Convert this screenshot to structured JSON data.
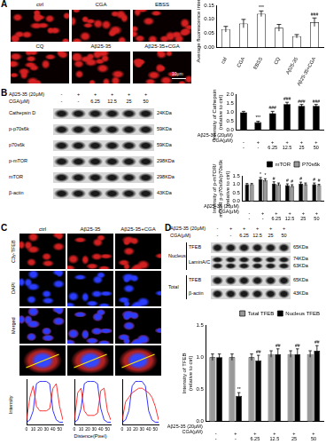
{
  "figure": {
    "A": {
      "label": "A",
      "image_labels": [
        "ctrl",
        "CGA",
        "EBSS",
        "CQ",
        "Aβ25-35",
        "Aβ25-35+CGA"
      ],
      "scale_bar": "10μm"
    },
    "B": {
      "label": "B",
      "blot": {
        "treatments": [
          {
            "label": "Aβ25-35 (20μM)",
            "values": [
              "-",
              "+",
              "+",
              "+",
              "+",
              "+"
            ]
          },
          {
            "label": "CGA(μM)",
            "values": [
              "-",
              "-",
              "6.25",
              "12.5",
              "25",
              "50"
            ]
          }
        ],
        "sections": [
          {
            "name": null,
            "bands": [
              {
                "name": "Cathepsin D",
                "sizes": [
                  "24KDa"
                ]
              },
              {
                "name": "p-p70s6k",
                "sizes": [
                  "59KDa"
                ]
              },
              {
                "name": "p70s6k",
                "sizes": [
                  "59KDa"
                ]
              },
              {
                "name": "p-mTOR",
                "sizes": [
                  "298KDa"
                ]
              },
              {
                "name": "mTOR",
                "sizes": [
                  "298KDa"
                ]
              },
              {
                "name": "β-actin",
                "sizes": [
                  "43KDa"
                ]
              }
            ]
          }
        ]
      }
    },
    "C": {
      "label": "C",
      "columns": [
        "ctrl",
        "Aβ25-35",
        "Aβ25-35+CGA"
      ],
      "rows": [
        "C3y-TFEB",
        "DAPI",
        "Merged"
      ],
      "profile_x_label": "Distence(Pixel)",
      "profile_y_label": "Intensity"
    },
    "D": {
      "label": "D",
      "blot": {
        "treatments": [
          {
            "label": "Aβ25-35 (20μM)",
            "values": [
              "-",
              "+",
              "+",
              "+",
              "+",
              "+"
            ]
          },
          {
            "label": "CGA(μM)",
            "values": [
              "-",
              "-",
              "6.25",
              "12.5",
              "25",
              "50"
            ]
          }
        ],
        "sections": [
          {
            "name": "Nucleus",
            "bands": [
              {
                "name": "TFEB",
                "sizes": [
                  "65KDa"
                ]
              },
              {
                "name": "LaminA/C",
                "sizes": [
                  "74KDa",
                  "63KDa"
                ]
              }
            ]
          },
          {
            "name": "Total",
            "bands": [
              {
                "name": "TFEB",
                "sizes": [
                  "65KDa"
                ]
              },
              {
                "name": "β-actin",
                "sizes": [
                  "43KDa"
                ]
              }
            ]
          }
        ]
      }
    }
  },
  "chart_data": [
    {
      "type": "bar",
      "categories": [
        "ctrl",
        "CGA",
        "EBSS",
        "CQ",
        "Aβ25-35",
        "Aβ25-35+CGA"
      ],
      "values": [
        0.065,
        0.085,
        0.12,
        0.07,
        0.04,
        0.09
      ],
      "errors": [
        0.01,
        0.015,
        0.01,
        0.012,
        0.006,
        0.015
      ],
      "annotations": [
        null,
        null,
        "***",
        null,
        null,
        "###"
      ],
      "color": "#ffffff",
      "y_label": "Average fluorescence intensity",
      "ylim": [
        0,
        0.15
      ],
      "yticks": [
        {
          "value": 0,
          "label": "0.00"
        },
        0.05,
        {
          "value": 0.1,
          "label": "0.10"
        },
        0.15
      ]
    },
    {
      "type": "bar",
      "categories": [
        [
          "-",
          "-"
        ],
        [
          "+",
          "-"
        ],
        [
          "+",
          "6.25"
        ],
        [
          "+",
          "12.5"
        ],
        [
          "+",
          "25"
        ],
        [
          "+",
          "50"
        ]
      ],
      "row_labels": [
        "Aβ25-35 (20μM)",
        "CGA(μM)"
      ],
      "values": [
        1,
        0.45,
        0.95,
        1.45,
        1.35,
        1.35
      ],
      "errors": [
        0.05,
        0.05,
        0.1,
        0.1,
        0.08,
        0.08
      ],
      "annotations": [
        null,
        "***",
        "###",
        "###",
        "###",
        "###"
      ],
      "color": "#000000",
      "y_label": [
        "Intensity of Cathepsin D",
        "(relative to ctrl)"
      ],
      "ylim": [
        0,
        2
      ],
      "yticks": [
        {
          "value": 0,
          "label": "0.0"
        },
        0.5,
        {
          "value": 1,
          "label": "1.0"
        },
        1.5,
        {
          "value": 2,
          "label": "2.0"
        }
      ]
    },
    {
      "type": "bar",
      "categories": [
        [
          "-",
          "-"
        ],
        [
          "+",
          "-"
        ],
        [
          "+",
          "6.25"
        ],
        [
          "+",
          "12.5"
        ],
        [
          "+",
          "25"
        ],
        [
          "+",
          "50"
        ]
      ],
      "row_labels": [
        "Aβ25-35 (20μM)",
        "CGA(μM)"
      ],
      "series": [
        {
          "name": "mTOR",
          "color": "#000000",
          "values": [
            1,
            1.3,
            1.05,
            0.95,
            1.05,
            1.0
          ],
          "errors": [
            0.05,
            0.1,
            0.1,
            0.08,
            0.08,
            0.08
          ],
          "annotations": [
            null,
            "*",
            "#",
            "#",
            "#",
            "#"
          ]
        },
        {
          "name": "P70s6k",
          "color": "#999999",
          "values": [
            1,
            1.25,
            1.0,
            0.9,
            1.0,
            0.95
          ],
          "errors": [
            0.05,
            0.08,
            0.08,
            0.08,
            0.08,
            0.05
          ],
          "annotations": [
            null,
            "*",
            null,
            "#",
            null,
            "#"
          ]
        }
      ],
      "legend": "top-right",
      "y_label": [
        "Intensity of p-mTOR/",
        "mTOR p-p70s6k/p70s6k",
        "(relative to ctrl)"
      ],
      "ylim": [
        0,
        1.5
      ],
      "yticks": [
        {
          "value": 0,
          "label": "0.0"
        },
        0.5,
        {
          "value": 1,
          "label": "1.0"
        },
        1.5
      ]
    },
    {
      "type": "line",
      "x": [
        0,
        5,
        10,
        15,
        20,
        25,
        30,
        35,
        40,
        45,
        50,
        55
      ],
      "series": [
        {
          "color": "#ff0000",
          "values": [
            10,
            60,
            85,
            40,
            30,
            30,
            30,
            35,
            80,
            90,
            40,
            10
          ]
        },
        {
          "color": "#0000ff",
          "values": [
            5,
            10,
            30,
            90,
            95,
            95,
            95,
            90,
            30,
            10,
            5,
            5
          ]
        }
      ],
      "xlim": [
        0,
        55
      ],
      "xticks": [
        0,
        10,
        20,
        30,
        40,
        50
      ],
      "ylim": [
        0,
        100
      ],
      "tick_labels": "x"
    },
    {
      "type": "line",
      "x": [
        0,
        5,
        10,
        15,
        20,
        25,
        30,
        35,
        40,
        45,
        50,
        55
      ],
      "series": [
        {
          "color": "#ff0000",
          "values": [
            10,
            70,
            80,
            30,
            20,
            20,
            20,
            25,
            75,
            80,
            30,
            10
          ]
        },
        {
          "color": "#0000ff",
          "values": [
            5,
            10,
            35,
            90,
            95,
            95,
            95,
            90,
            35,
            10,
            5,
            5
          ]
        }
      ],
      "xlim": [
        0,
        55
      ],
      "xticks": [
        0,
        10,
        20,
        30,
        40,
        50
      ],
      "ylim": [
        0,
        100
      ],
      "tick_labels": "x"
    },
    {
      "type": "line",
      "x": [
        0,
        5,
        10,
        15,
        20,
        25,
        30,
        35,
        40,
        45,
        50,
        55
      ],
      "series": [
        {
          "color": "#ff0000",
          "values": [
            10,
            50,
            60,
            70,
            75,
            80,
            80,
            75,
            70,
            60,
            40,
            10
          ]
        },
        {
          "color": "#0000ff",
          "values": [
            5,
            10,
            30,
            85,
            95,
            95,
            95,
            85,
            30,
            10,
            5,
            5
          ]
        }
      ],
      "xlim": [
        0,
        55
      ],
      "xticks": [
        0,
        10,
        20,
        30,
        40,
        50
      ],
      "ylim": [
        0,
        100
      ],
      "tick_labels": "x"
    },
    {
      "type": "bar",
      "categories": [
        [
          "-",
          "-"
        ],
        [
          "+",
          "-"
        ],
        [
          "+",
          "6.25"
        ],
        [
          "+",
          "12.5"
        ],
        [
          "+",
          "25"
        ],
        [
          "+",
          "50"
        ]
      ],
      "row_labels": [
        "Aβ25-35 (20μM)",
        "CGA(μM)"
      ],
      "series": [
        {
          "name": "Total TFEB",
          "color": "#999999",
          "values": [
            1,
            1.0,
            1.0,
            1.05,
            1.05,
            1.05
          ],
          "errors": [
            0.05,
            0.05,
            0.05,
            0.05,
            0.05,
            0.05
          ]
        },
        {
          "name": "Nucleus TFEB",
          "color": "#000000",
          "values": [
            1,
            0.4,
            0.95,
            1.05,
            1.05,
            1.1
          ],
          "errors": [
            0.05,
            0.05,
            0.08,
            0.08,
            0.08,
            0.08
          ],
          "annotations": [
            null,
            "**",
            "##",
            "##",
            "##",
            "##"
          ]
        }
      ],
      "legend": "top-right",
      "y_label": [
        "Intensity of TFEB",
        "(relative to ctrl)"
      ],
      "ylim": [
        0,
        1.5
      ],
      "yticks": [
        {
          "value": 0,
          "label": "0.0"
        },
        0.5,
        {
          "value": 1,
          "label": "1.0"
        },
        1.5
      ]
    }
  ]
}
